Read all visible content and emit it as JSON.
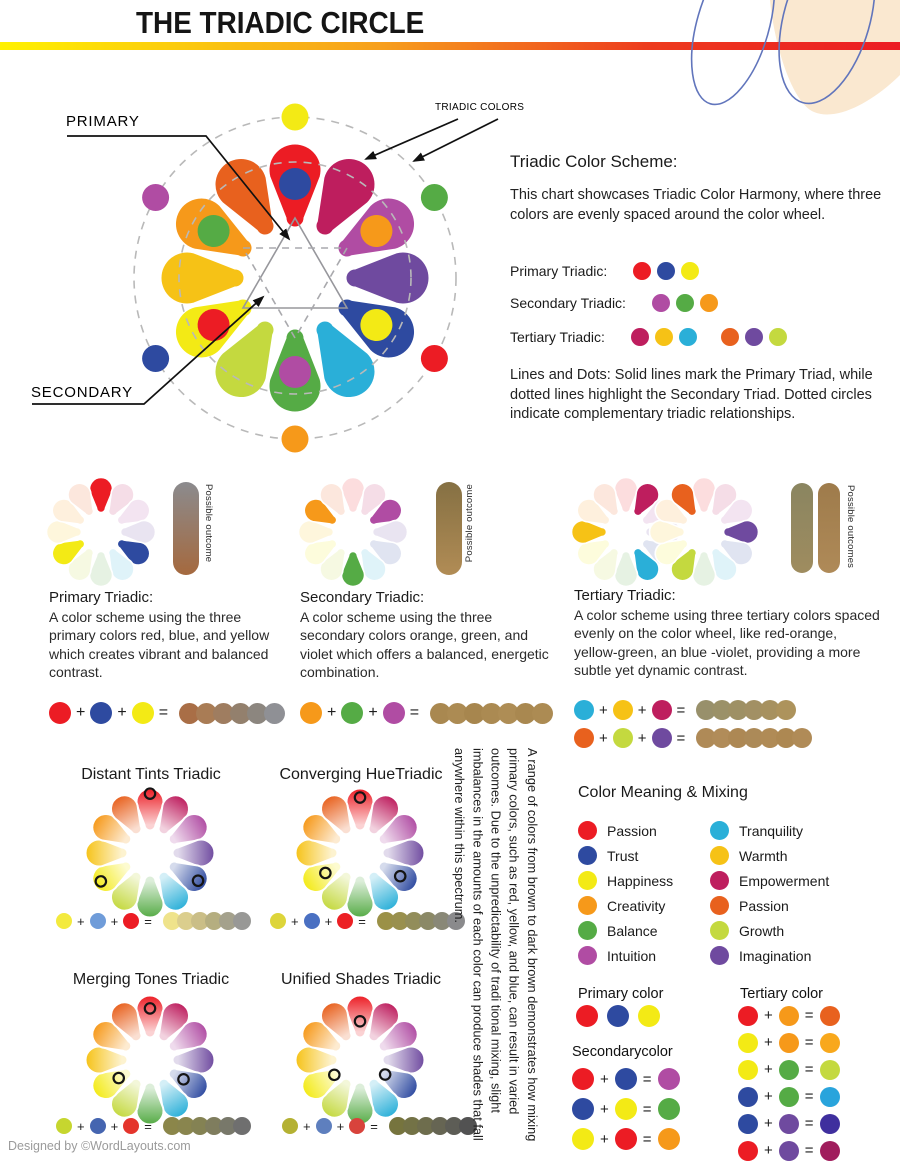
{
  "header": {
    "title": "THE TRIADIC CIRCLE"
  },
  "palette": {
    "order": [
      "red",
      "crimson",
      "magenta",
      "violet",
      "blue",
      "cyan",
      "green",
      "yellow_green",
      "yellow",
      "gold",
      "orange",
      "red_orange"
    ],
    "colors": {
      "red": "#EC1C24",
      "crimson": "#BE1E5E",
      "magenta": "#B04CA3",
      "violet": "#6F4A9F",
      "blue": "#2E4AA0",
      "cyan": "#2AAFD8",
      "green": "#55AB45",
      "yellow_green": "#C4D93F",
      "yellow": "#F3EA15",
      "gold": "#F6C216",
      "orange": "#F6991A",
      "red_orange": "#E8611E"
    }
  },
  "main_wheel": {
    "labels": {
      "primary": "PRIMARY",
      "secondary": "SECONDARY",
      "triadic_colors": "TRIADIC COLORS"
    },
    "petal_dots": [
      {
        "petal": 0,
        "color": "blue"
      },
      {
        "petal": 2,
        "color": "orange"
      },
      {
        "petal": 4,
        "color": "yellow"
      },
      {
        "petal": 6,
        "color": "magenta"
      },
      {
        "petal": 8,
        "color": "red"
      },
      {
        "petal": 10,
        "color": "green"
      }
    ],
    "outer_dots": [
      {
        "deg": 0,
        "color": "yellow"
      },
      {
        "deg": 60,
        "color": "green"
      },
      {
        "deg": 120,
        "color": "red"
      },
      {
        "deg": 180,
        "color": "orange"
      },
      {
        "deg": 240,
        "color": "blue"
      },
      {
        "deg": 300,
        "color": "magenta"
      }
    ]
  },
  "scheme": {
    "heading": "Triadic Color Scheme:",
    "body": "This chart showcases Triadic Color Harmony, where three colors are evenly spaced around the color wheel.",
    "rows": [
      {
        "label": "Primary Triadic:",
        "dots": [
          "red",
          "blue",
          "yellow"
        ]
      },
      {
        "label": "Secondary Triadic:",
        "dots": [
          "magenta",
          "green",
          "orange"
        ]
      },
      {
        "label": "Tertiary Triadic:",
        "dots": [
          "crimson",
          "gold",
          "cyan",
          "|",
          "red_orange",
          "violet",
          "yellow_green"
        ]
      }
    ],
    "note": "Lines and Dots: Solid lines mark the Primary Triad, while dotted lines highlight the Secondary Triad. Dotted circles indicate complementary triadic relationships."
  },
  "panels": [
    {
      "heading": "Primary Triadic:",
      "body": "A color scheme using the three primary colors red, blue, and yellow which creates vibrant and balanced contrast.",
      "bar_label": "Possible outcome",
      "highlight_petals": [
        0,
        4,
        8
      ],
      "equation": {
        "inputs": [
          "red",
          "blue",
          "yellow"
        ],
        "results": [
          "#A96E46",
          "#A97C55",
          "#9F7D60",
          "#93806D",
          "#8C867F",
          "#8F9095"
        ]
      }
    },
    {
      "heading": "Secondary Triadic:",
      "body": "A color scheme using the three secondary colors orange, green, and violet which offers a balanced, energetic combination.",
      "bar_label": "Possible outcome",
      "highlight_petals": [
        2,
        6,
        10
      ],
      "equation": {
        "inputs": [
          "orange",
          "green",
          "magenta"
        ],
        "results": [
          "#A98850",
          "#AC8B53",
          "#A7864E",
          "#AB8A52",
          "#AE8D55",
          "#A98850",
          "#AC8B53"
        ]
      }
    },
    {
      "heading": "Tertiary Triadic:",
      "body": "A color scheme using three tertiary colors spaced evenly on the color wheel, like red-orange, yellow-green, an blue -violet, providing a more subtle yet dynamic contrast.",
      "bar_label": "Possible outcomes",
      "highlight_petals_a": [
        1,
        5,
        9
      ],
      "highlight_petals_b": [
        3,
        7,
        11
      ],
      "equation_a": {
        "inputs": [
          "cyan",
          "gold",
          "crimson"
        ],
        "results": [
          "#98906B",
          "#9B9168",
          "#9E9064",
          "#A29064",
          "#A7915F",
          "#AD935C"
        ]
      },
      "equation_b": {
        "inputs": [
          "red_orange",
          "yellow_green",
          "violet"
        ],
        "results": [
          "#AF8A57",
          "#B18C59",
          "#AD8854",
          "#AC8A58",
          "#B08B56",
          "#AD8852",
          "#B08B57"
        ]
      }
    }
  ],
  "bottom": {
    "note_vertical": "A range of colors from brown to dark brown demonstrates how mixing primary colors, such as red, yellow, and blue, can result in varied outcomes. Due to the unpredictability of tradi tional mixing, slight imbalances in the amounts of each color can produce shades that fall anywhere within this spectrum.",
    "wheels": [
      {
        "title": "Distant Tints Triadic",
        "markers": [
          {
            "petal": 0,
            "t": 0.92
          },
          {
            "petal": 4,
            "t": 0.86
          },
          {
            "petal": 8,
            "t": 0.88
          }
        ],
        "equation": {
          "inputs": [
            "#F3EA3E",
            "#6F9CD9",
            "#EC1C24"
          ],
          "results": [
            "#EFE38B",
            "#DBCE8D",
            "#CABE87",
            "#B5AE80",
            "#A4A18C",
            "#989896"
          ]
        }
      },
      {
        "title": "Converging HueTriadic",
        "markers": [
          {
            "petal": 0,
            "t": 0.86
          },
          {
            "petal": 4,
            "t": 0.72
          },
          {
            "petal": 8,
            "t": 0.62
          }
        ],
        "equation": {
          "inputs": [
            "#DDD53A",
            "#4A70C2",
            "#EC2024"
          ],
          "results": [
            "#9B9147",
            "#99904E",
            "#928D5A",
            "#8B8966",
            "#898877",
            "#8A8A8C"
          ]
        }
      },
      {
        "title": "Merging Tones Triadic",
        "markers": [
          {
            "petal": 0,
            "t": 0.8
          },
          {
            "petal": 4,
            "t": 0.6
          },
          {
            "petal": 8,
            "t": 0.56
          }
        ],
        "equation": {
          "inputs": [
            "#C6D62F",
            "#4565B0",
            "#E4342C"
          ],
          "results": [
            "#8B864A",
            "#89854E",
            "#848253",
            "#7F7D5E",
            "#78786A",
            "#6F6F6F"
          ]
        }
      },
      {
        "title": "Unified Shades Triadic",
        "markers": [
          {
            "petal": 0,
            "t": 0.6
          },
          {
            "petal": 4,
            "t": 0.45
          },
          {
            "petal": 8,
            "t": 0.46
          }
        ],
        "equation": {
          "inputs": [
            "#B4B133",
            "#5E7FBE",
            "#D8433C"
          ],
          "results": [
            "#76743E",
            "#737246",
            "#6E6D4D",
            "#666553",
            "#5D5D56",
            "#525252"
          ]
        }
      }
    ]
  },
  "meaning": {
    "heading": "Color Meaning & Mixing",
    "left": [
      {
        "label": "Passion",
        "color": "red"
      },
      {
        "label": "Trust",
        "color": "blue"
      },
      {
        "label": "Happiness",
        "color": "yellow"
      },
      {
        "label": "Creativity",
        "color": "orange"
      },
      {
        "label": "Balance",
        "color": "green"
      },
      {
        "label": "Intuition",
        "color": "magenta"
      }
    ],
    "right": [
      {
        "label": "Tranquility",
        "color": "cyan"
      },
      {
        "label": "Warmth",
        "color": "gold"
      },
      {
        "label": "Empowerment",
        "color": "crimson"
      },
      {
        "label": "Passion",
        "color": "red_orange"
      },
      {
        "label": "Growth",
        "color": "yellow_green"
      },
      {
        "label": "Imagination",
        "color": "violet"
      }
    ]
  },
  "mixing": {
    "primary": {
      "heading": "Primary color",
      "dots": [
        "red",
        "blue",
        "yellow"
      ]
    },
    "secondary": {
      "heading": "Secondarycolor",
      "rows": [
        {
          "a": "red",
          "b": "blue",
          "result": "#B04CA3"
        },
        {
          "a": "blue",
          "b": "yellow",
          "result": "#55AB45"
        },
        {
          "a": "yellow",
          "b": "red",
          "result": "#F6991A"
        }
      ]
    },
    "tertiary": {
      "heading": "Tertiary color",
      "rows": [
        {
          "a": "red",
          "b": "orange",
          "result": "#E8611E"
        },
        {
          "a": "yellow",
          "b": "orange",
          "result": "#F8A81C"
        },
        {
          "a": "yellow",
          "b": "green",
          "result": "#C4D93F"
        },
        {
          "a": "blue",
          "b": "green",
          "result": "#29A4DC"
        },
        {
          "a": "blue",
          "b": "violet",
          "result": "#3F2F9E"
        },
        {
          "a": "red",
          "b": "violet",
          "result": "#A01D5D"
        }
      ]
    }
  },
  "footer": {
    "text": "Designed by ©WordLayouts.com"
  }
}
